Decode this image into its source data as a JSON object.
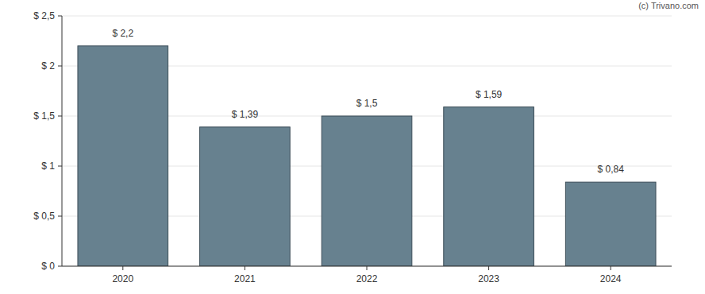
{
  "chart_data": {
    "type": "bar",
    "source": "(c) Trivano.com",
    "categories": [
      "2020",
      "2021",
      "2022",
      "2023",
      "2024"
    ],
    "values": [
      2.2,
      1.39,
      1.5,
      1.59,
      0.84
    ],
    "value_labels": [
      "$ 2,2",
      "$ 1,39",
      "$ 1,5",
      "$ 1,59",
      "$ 0,84"
    ],
    "data_labels": true,
    "color": "#67818f",
    "ylim": [
      0,
      2.5
    ],
    "yticks": [
      {
        "value": 0,
        "label": "$ 0"
      },
      {
        "value": 0.5,
        "label": "$ 0,5"
      },
      {
        "value": 1,
        "label": "$ 1"
      },
      {
        "value": 1.5,
        "label": "$ 1,5"
      },
      {
        "value": 2,
        "label": "$ 2"
      },
      {
        "value": 2.5,
        "label": "$ 2,5"
      }
    ],
    "grid": true
  }
}
